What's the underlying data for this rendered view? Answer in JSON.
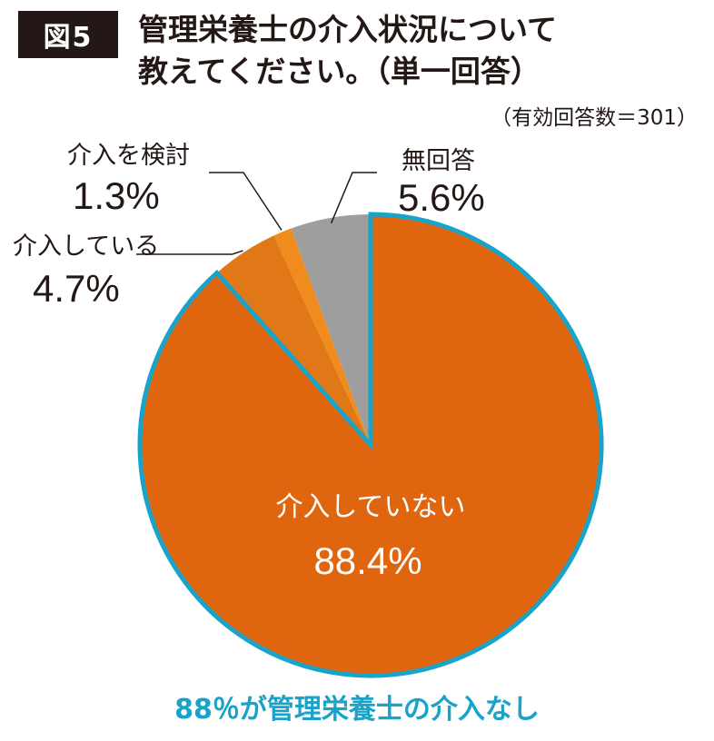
{
  "figure_label": "図5",
  "title_lines": [
    "管理栄養士の介入状況について",
    "教えてください。（単一回答）"
  ],
  "respondents": "（有効回答数＝301）",
  "footer": "88％が管理栄養士の介入なし",
  "colors": {
    "slice_no_intervention": "#e0650f",
    "slice_intervening": "#e07817",
    "slice_considering": "#f08c1e",
    "slice_no_answer": "#9e9e9e",
    "outline": "#1aa3c9",
    "badge_bg": "#231815"
  },
  "chart_data": {
    "type": "pie",
    "start": "12 o'clock",
    "direction": "clockwise",
    "slices": [
      {
        "name": "介入していない",
        "value": 88.4,
        "value_label": "88.4%",
        "color": "#e0650f"
      },
      {
        "name": "介入している",
        "value": 4.7,
        "value_label": "4.7%",
        "color": "#e07817"
      },
      {
        "name": "介入を検討",
        "value": 1.3,
        "value_label": "1.3%",
        "color": "#f08c1e"
      },
      {
        "name": "無回答",
        "value": 5.6,
        "value_label": "5.6%",
        "color": "#9e9e9e"
      }
    ]
  }
}
